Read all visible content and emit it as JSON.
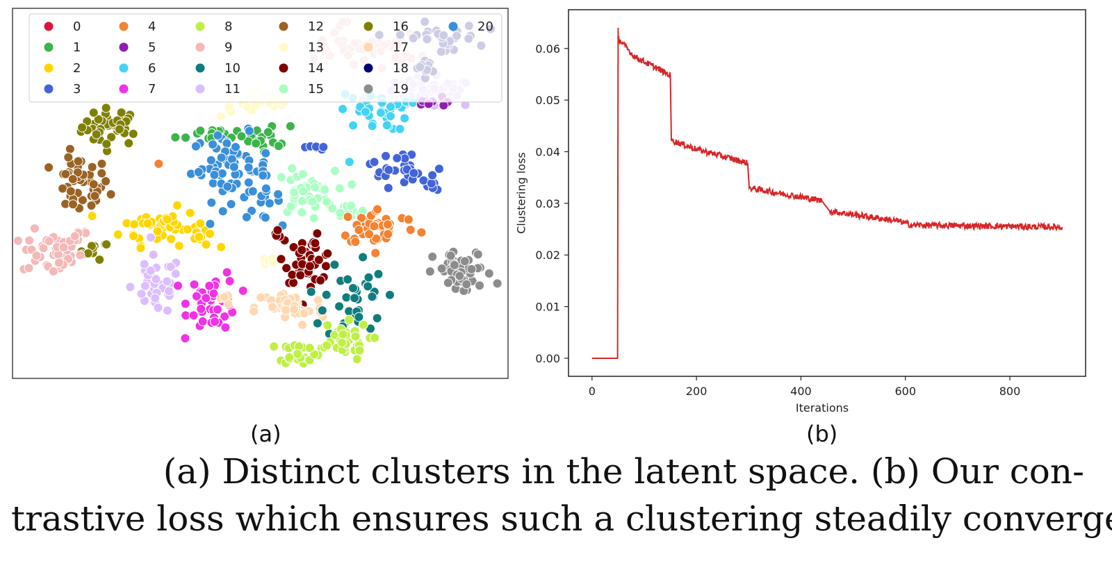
{
  "chart_data": [
    {
      "type": "scatter",
      "panel": "(a)",
      "title": "",
      "xlabel": "",
      "ylabel": "",
      "legend_position": "top",
      "legend": [
        {
          "label": "0",
          "color": "#dc143c"
        },
        {
          "label": "1",
          "color": "#3cb44b"
        },
        {
          "label": "2",
          "color": "#ffd700"
        },
        {
          "label": "3",
          "color": "#4363d8"
        },
        {
          "label": "4",
          "color": "#f58231"
        },
        {
          "label": "5",
          "color": "#911eb4"
        },
        {
          "label": "6",
          "color": "#42d4f4"
        },
        {
          "label": "7",
          "color": "#f032e6"
        },
        {
          "label": "8",
          "color": "#bfef45"
        },
        {
          "label": "9",
          "color": "#f4b8b8"
        },
        {
          "label": "10",
          "color": "#0f7d7d"
        },
        {
          "label": "11",
          "color": "#dcbeff"
        },
        {
          "label": "12",
          "color": "#9a6324"
        },
        {
          "label": "13",
          "color": "#fffac8"
        },
        {
          "label": "14",
          "color": "#800000"
        },
        {
          "label": "15",
          "color": "#aaffc3"
        },
        {
          "label": "16",
          "color": "#808000"
        },
        {
          "label": "17",
          "color": "#ffd8b1"
        },
        {
          "label": "18",
          "color": "#000075"
        },
        {
          "label": "19",
          "color": "#8c8c8c"
        },
        {
          "label": "20",
          "color": "#3a8fd9"
        }
      ],
      "clusters": [
        {
          "class": 16,
          "cx": 0.2,
          "cy": 0.68,
          "n": 40,
          "sx": 0.03,
          "sy": 0.025
        },
        {
          "class": 16,
          "cx": 0.165,
          "cy": 0.345,
          "n": 10,
          "sx": 0.015,
          "sy": 0.012
        },
        {
          "class": 4,
          "cx": 0.295,
          "cy": 0.58,
          "n": 1,
          "sx": 0.0,
          "sy": 0.0
        },
        {
          "class": 12,
          "cx": 0.135,
          "cy": 0.52,
          "n": 45,
          "sx": 0.03,
          "sy": 0.04
        },
        {
          "class": 9,
          "cx": 0.08,
          "cy": 0.34,
          "n": 45,
          "sx": 0.03,
          "sy": 0.03
        },
        {
          "class": 9,
          "cx": 0.13,
          "cy": 0.39,
          "n": 10,
          "sx": 0.015,
          "sy": 0.015
        },
        {
          "class": 2,
          "cx": 0.3,
          "cy": 0.41,
          "n": 45,
          "sx": 0.04,
          "sy": 0.025
        },
        {
          "class": 2,
          "cx": 0.38,
          "cy": 0.385,
          "n": 10,
          "sx": 0.015,
          "sy": 0.015
        },
        {
          "class": 1,
          "cx": 0.41,
          "cy": 0.66,
          "n": 25,
          "sx": 0.04,
          "sy": 0.012
        },
        {
          "class": 1,
          "cx": 0.52,
          "cy": 0.65,
          "n": 14,
          "sx": 0.02,
          "sy": 0.018
        },
        {
          "class": 20,
          "cx": 0.44,
          "cy": 0.57,
          "n": 60,
          "sx": 0.04,
          "sy": 0.045
        },
        {
          "class": 20,
          "cx": 0.5,
          "cy": 0.49,
          "n": 18,
          "sx": 0.02,
          "sy": 0.03
        },
        {
          "class": 13,
          "cx": 0.5,
          "cy": 0.745,
          "n": 25,
          "sx": 0.04,
          "sy": 0.02
        },
        {
          "class": 13,
          "cx": 0.515,
          "cy": 0.32,
          "n": 7,
          "sx": 0.012,
          "sy": 0.01
        },
        {
          "class": 11,
          "cx": 0.29,
          "cy": 0.25,
          "n": 40,
          "sx": 0.025,
          "sy": 0.04
        },
        {
          "class": 11,
          "cx": 0.84,
          "cy": 0.77,
          "n": 45,
          "sx": 0.05,
          "sy": 0.02
        },
        {
          "class": 7,
          "cx": 0.405,
          "cy": 0.21,
          "n": 45,
          "sx": 0.025,
          "sy": 0.04
        },
        {
          "class": 14,
          "cx": 0.6,
          "cy": 0.32,
          "n": 45,
          "sx": 0.025,
          "sy": 0.03
        },
        {
          "class": 14,
          "cx": 0.53,
          "cy": 0.39,
          "n": 5,
          "sx": 0.008,
          "sy": 0.01
        },
        {
          "class": 15,
          "cx": 0.59,
          "cy": 0.5,
          "n": 40,
          "sx": 0.03,
          "sy": 0.03
        },
        {
          "class": 15,
          "cx": 0.67,
          "cy": 0.45,
          "n": 12,
          "sx": 0.025,
          "sy": 0.01
        },
        {
          "class": 17,
          "cx": 0.56,
          "cy": 0.19,
          "n": 40,
          "sx": 0.035,
          "sy": 0.025
        },
        {
          "class": 17,
          "cx": 0.43,
          "cy": 0.21,
          "n": 4,
          "sx": 0.01,
          "sy": 0.01
        },
        {
          "class": 4,
          "cx": 0.74,
          "cy": 0.41,
          "n": 45,
          "sx": 0.04,
          "sy": 0.025
        },
        {
          "class": 10,
          "cx": 0.69,
          "cy": 0.22,
          "n": 35,
          "sx": 0.03,
          "sy": 0.06
        },
        {
          "class": 8,
          "cx": 0.58,
          "cy": 0.07,
          "n": 25,
          "sx": 0.02,
          "sy": 0.015
        },
        {
          "class": 8,
          "cx": 0.66,
          "cy": 0.1,
          "n": 35,
          "sx": 0.03,
          "sy": 0.025
        },
        {
          "class": 6,
          "cx": 0.73,
          "cy": 0.72,
          "n": 35,
          "sx": 0.035,
          "sy": 0.025
        },
        {
          "class": 6,
          "cx": 0.68,
          "cy": 0.585,
          "n": 1,
          "sx": 0.0,
          "sy": 0.0
        },
        {
          "class": 3,
          "cx": 0.61,
          "cy": 0.625,
          "n": 6,
          "sx": 0.01,
          "sy": 0.005
        },
        {
          "class": 3,
          "cx": 0.77,
          "cy": 0.57,
          "n": 25,
          "sx": 0.025,
          "sy": 0.025
        },
        {
          "class": 3,
          "cx": 0.84,
          "cy": 0.53,
          "n": 14,
          "sx": 0.015,
          "sy": 0.018
        },
        {
          "class": 5,
          "cx": 0.85,
          "cy": 0.74,
          "n": 8,
          "sx": 0.02,
          "sy": 0.01
        },
        {
          "class": 19,
          "cx": 0.91,
          "cy": 0.285,
          "n": 50,
          "sx": 0.03,
          "sy": 0.03
        },
        {
          "class": 9,
          "cx": 0.72,
          "cy": 0.89,
          "n": 40,
          "sx": 0.05,
          "sy": 0.02
        },
        {
          "class": 9,
          "cx": 0.665,
          "cy": 0.95,
          "n": 5,
          "sx": 0.01,
          "sy": 0.008
        },
        {
          "class": 18,
          "cx": 0.86,
          "cy": 0.92,
          "n": 30,
          "sx": 0.04,
          "sy": 0.02
        },
        {
          "class": 18,
          "cx": 0.83,
          "cy": 0.84,
          "n": 12,
          "sx": 0.02,
          "sy": 0.012
        }
      ]
    },
    {
      "type": "line",
      "panel": "(b)",
      "title": "",
      "xlabel": "Iterations",
      "ylabel": "Clustering loss",
      "xlim": [
        -45,
        945
      ],
      "ylim": [
        -0.0035,
        0.0675
      ],
      "xticks": [
        "0",
        "200",
        "400",
        "600",
        "800"
      ],
      "xtick_values": [
        0,
        200,
        400,
        600,
        800
      ],
      "yticks": [
        "0.00",
        "0.01",
        "0.02",
        "0.03",
        "0.04",
        "0.05",
        "0.06"
      ],
      "ytick_values": [
        0.0,
        0.01,
        0.02,
        0.03,
        0.04,
        0.05,
        0.06
      ],
      "grid": false,
      "color": "#d62728",
      "noise_amplitude": 0.0006,
      "segments": [
        {
          "x": [
            0,
            49
          ],
          "y": [
            0.0,
            0.0
          ],
          "noise": false
        },
        {
          "x": [
            49,
            50
          ],
          "y": [
            0.0,
            0.064
          ],
          "noise": false
        },
        {
          "x": [
            50,
            80
          ],
          "y": [
            0.062,
            0.0585
          ],
          "noise": true
        },
        {
          "x": [
            80,
            150
          ],
          "y": [
            0.0585,
            0.0548
          ],
          "noise": true
        },
        {
          "x": [
            150,
            152
          ],
          "y": [
            0.0548,
            0.0422
          ],
          "noise": false
        },
        {
          "x": [
            152,
            200
          ],
          "y": [
            0.0422,
            0.0405
          ],
          "noise": true
        },
        {
          "x": [
            200,
            298
          ],
          "y": [
            0.0405,
            0.0378
          ],
          "noise": true
        },
        {
          "x": [
            298,
            301
          ],
          "y": [
            0.0378,
            0.033
          ],
          "noise": false
        },
        {
          "x": [
            301,
            440
          ],
          "y": [
            0.033,
            0.0305
          ],
          "noise": true
        },
        {
          "x": [
            440,
            455
          ],
          "y": [
            0.0305,
            0.0285
          ],
          "noise": false
        },
        {
          "x": [
            455,
            590
          ],
          "y": [
            0.0285,
            0.0265
          ],
          "noise": true
        },
        {
          "x": [
            590,
            610
          ],
          "y": [
            0.0265,
            0.0258
          ],
          "noise": true
        },
        {
          "x": [
            610,
            900
          ],
          "y": [
            0.0258,
            0.0254
          ],
          "noise": true
        }
      ]
    }
  ],
  "panel_labels": {
    "a": "(a)",
    "b": "(b)"
  },
  "caption": {
    "line1": "(a) Distinct clusters in the latent space.  (b) Our con-",
    "line2": "trastive loss which ensures such a clustering steadily converges."
  }
}
